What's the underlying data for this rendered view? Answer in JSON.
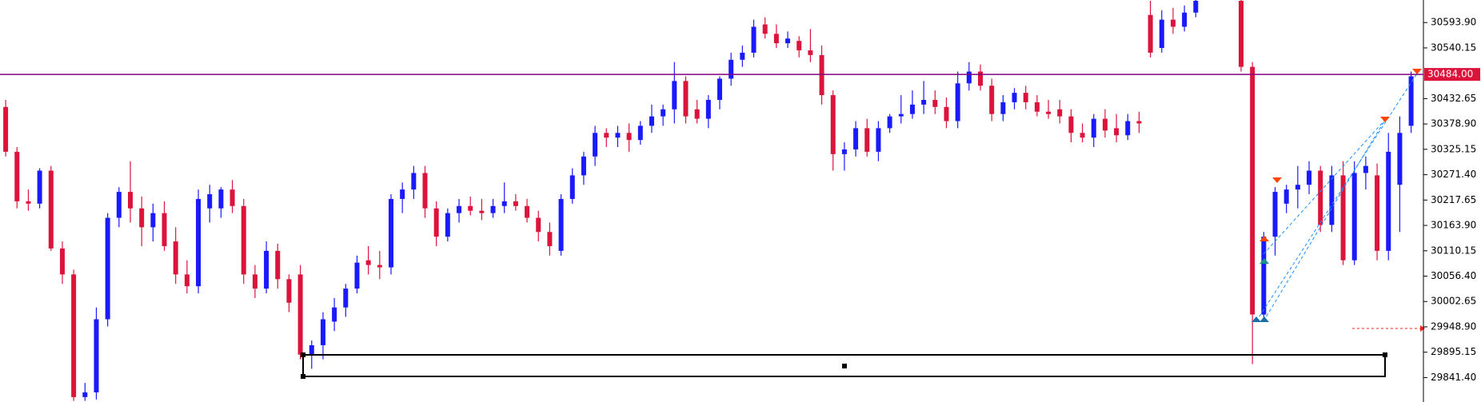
{
  "chart_data": {
    "type": "candlestick",
    "up_color": "#1a1aff",
    "down_color": "#dc143c",
    "price_line_color": "#800080",
    "ylim": [
      29789.6,
      30641.7
    ],
    "yticks": [
      {
        "value": 30593.9,
        "label": "30593.90"
      },
      {
        "value": 30540.15,
        "label": "30540.15"
      },
      {
        "value": 30432.65,
        "label": "30432.65"
      },
      {
        "value": 30378.9,
        "label": "30378.90"
      },
      {
        "value": 30325.15,
        "label": "30325.15"
      },
      {
        "value": 30271.4,
        "label": "30271.40"
      },
      {
        "value": 30217.65,
        "label": "30217.65"
      },
      {
        "value": 30163.9,
        "label": "30163.90"
      },
      {
        "value": 30110.15,
        "label": "30110.15"
      },
      {
        "value": 30056.4,
        "label": "30056.40"
      },
      {
        "value": 30002.65,
        "label": "30002.65"
      },
      {
        "value": 29948.9,
        "label": "29948.90"
      },
      {
        "value": 29895.15,
        "label": "29895.15"
      },
      {
        "value": 29841.4,
        "label": "29841.40"
      }
    ],
    "price_line": {
      "value": 30484,
      "label": "30484.00"
    },
    "series": [
      {
        "name": "open",
        "values": [
          30415,
          30320,
          30215,
          30210,
          30280,
          30115,
          30060,
          29800,
          29810,
          29965,
          30180,
          30235,
          30200,
          30160,
          30190,
          30130,
          30060,
          30035,
          30200,
          30200,
          30240,
          30205,
          30060,
          30030,
          30110,
          30050,
          30060,
          29890,
          29910,
          29960,
          29990,
          30030,
          30090,
          30080,
          30075,
          30220,
          30240,
          30275,
          30200,
          30140,
          30190,
          30205,
          30195,
          30190,
          30205,
          30215,
          30205,
          30180,
          30150,
          30110,
          30220,
          30270,
          30310,
          30360,
          30350,
          30360,
          30345,
          30375,
          30395,
          30410,
          30470,
          30410,
          30390,
          30430,
          30475,
          30515,
          30530,
          30590,
          30570,
          30550,
          30555,
          30535,
          30525,
          30440,
          30315,
          30325,
          30370,
          30320,
          30370,
          30395,
          30400,
          30420,
          30430,
          30415,
          30385,
          30465,
          30490,
          30460,
          30400,
          30425,
          30445,
          30425,
          30405,
          30410,
          30395,
          30360,
          30350,
          30390,
          30370,
          30355,
          30385,
          30610,
          30540,
          30600,
          30585,
          30615,
          null,
          null,
          null,
          30640,
          30500,
          29975,
          30140,
          30210,
          30240,
          30250,
          30280,
          30165,
          30270,
          30090,
          30275,
          30270,
          30110,
          30250,
          30375
        ]
      },
      {
        "name": "high",
        "values": [
          30430,
          30330,
          30240,
          30285,
          30290,
          30130,
          30070,
          29830,
          29990,
          30190,
          30245,
          30300,
          30225,
          30210,
          30215,
          30160,
          30090,
          30240,
          30250,
          30245,
          30260,
          30220,
          30080,
          30130,
          30125,
          30060,
          30080,
          29920,
          29980,
          30010,
          30040,
          30100,
          30120,
          30110,
          30230,
          30255,
          30290,
          30290,
          30215,
          30200,
          30220,
          30225,
          30220,
          30220,
          30255,
          30230,
          30220,
          30195,
          30170,
          30230,
          30285,
          30320,
          30375,
          30370,
          30375,
          30380,
          30385,
          30420,
          30420,
          30510,
          30480,
          30430,
          30440,
          30480,
          30530,
          30545,
          30600,
          30605,
          30590,
          30575,
          30565,
          30580,
          30545,
          30450,
          30340,
          30385,
          30390,
          30385,
          30400,
          30440,
          30450,
          30470,
          30450,
          30435,
          30490,
          30510,
          30505,
          30475,
          30440,
          30455,
          30460,
          30440,
          30430,
          30430,
          30410,
          30380,
          30400,
          30410,
          30400,
          30400,
          30405,
          30640,
          30620,
          30625,
          30630,
          30645,
          null,
          null,
          null,
          30645,
          30510,
          30150,
          30245,
          30250,
          30290,
          30300,
          30290,
          30290,
          30300,
          30300,
          30310,
          30295,
          30360,
          30395,
          30490
        ]
      },
      {
        "name": "low",
        "values": [
          30310,
          30200,
          30195,
          30200,
          30110,
          30040,
          29792,
          29792,
          29795,
          29950,
          30160,
          30170,
          30120,
          30130,
          30110,
          30040,
          30020,
          30020,
          30170,
          30180,
          30190,
          30040,
          30010,
          30020,
          30030,
          29980,
          29880,
          29860,
          29880,
          29940,
          29970,
          30020,
          30060,
          30050,
          30060,
          30190,
          30220,
          30180,
          30120,
          30130,
          30170,
          30185,
          30175,
          30180,
          30190,
          30195,
          30170,
          30130,
          30100,
          30100,
          30210,
          30250,
          30290,
          30330,
          30330,
          30320,
          30335,
          30360,
          30375,
          30380,
          30380,
          30380,
          30370,
          30410,
          30460,
          30500,
          30520,
          30560,
          30540,
          30540,
          30520,
          30510,
          30420,
          30280,
          30280,
          30310,
          30310,
          30300,
          30360,
          30380,
          30390,
          30400,
          30400,
          30370,
          30370,
          30450,
          30450,
          30385,
          30385,
          30410,
          30410,
          30395,
          30390,
          30380,
          30340,
          30340,
          30330,
          30350,
          30340,
          30345,
          30360,
          30520,
          30530,
          30570,
          30575,
          30605,
          null,
          null,
          null,
          30490,
          29870,
          29965,
          30100,
          30190,
          30200,
          30230,
          30150,
          30150,
          30080,
          30080,
          30240,
          30090,
          30090,
          30150,
          30360
        ]
      },
      {
        "name": "close",
        "values": [
          30320,
          30215,
          30210,
          30280,
          30115,
          30060,
          29800,
          29810,
          29965,
          30180,
          30235,
          30200,
          30160,
          30190,
          30120,
          30060,
          30035,
          30220,
          30230,
          30240,
          30205,
          30060,
          30030,
          30110,
          30050,
          30000,
          29890,
          29910,
          29965,
          29990,
          30030,
          30085,
          30080,
          30075,
          30220,
          30240,
          30275,
          30200,
          30140,
          30190,
          30205,
          30195,
          30190,
          30205,
          30215,
          30205,
          30180,
          30150,
          30120,
          30220,
          30270,
          30310,
          30360,
          30350,
          30360,
          30345,
          30375,
          30395,
          30410,
          30470,
          30395,
          30390,
          30430,
          30475,
          30515,
          30530,
          30585,
          30570,
          30550,
          30560,
          30535,
          30525,
          30440,
          30315,
          30325,
          30370,
          30320,
          30370,
          30395,
          30400,
          30420,
          30430,
          30415,
          30385,
          30465,
          30490,
          30460,
          30400,
          30425,
          30445,
          30425,
          30405,
          30400,
          30395,
          30360,
          30350,
          30390,
          30365,
          30355,
          30385,
          30380,
          30530,
          30600,
          30585,
          30615,
          30640,
          null,
          null,
          null,
          30500,
          29975,
          30140,
          30235,
          30240,
          30250,
          30280,
          30165,
          30270,
          30090,
          30275,
          30290,
          30110,
          30320,
          30360,
          30480
        ]
      }
    ]
  }
}
